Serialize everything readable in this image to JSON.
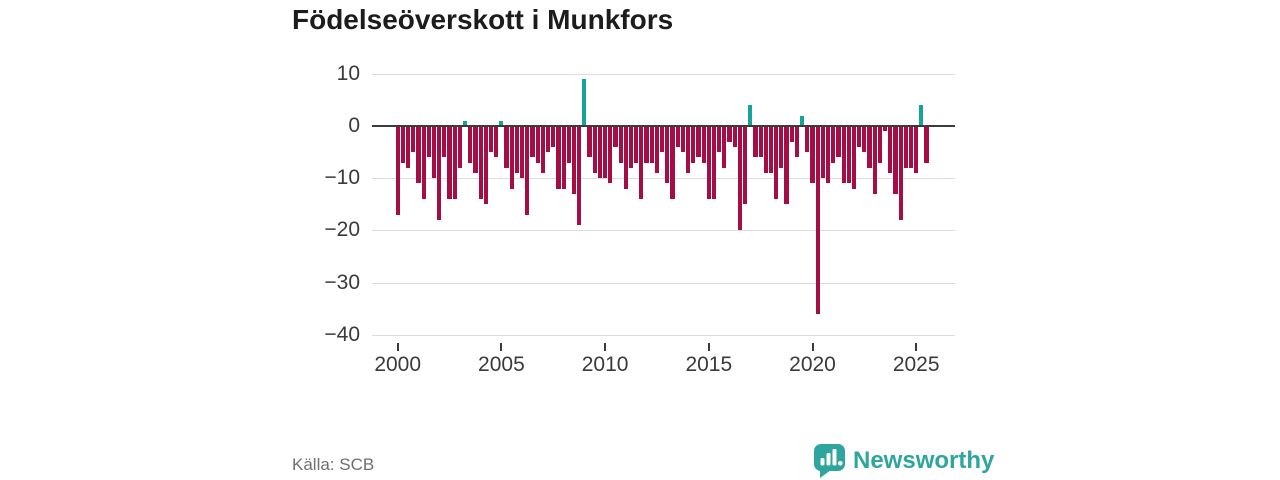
{
  "title": "Födelseöverskott i Munkfors",
  "source": "Källa: SCB",
  "brand": {
    "name": "Newsworthy"
  },
  "colors": {
    "negative_bar": "#a50d45",
    "positive_bar": "#17a39b",
    "zero_line": "#3b3b3b",
    "gridline": "#dcdcdc",
    "axis_text": "#3a3a3a",
    "title_text": "#1c1c1c",
    "source_text": "#6f6f6f",
    "brand_teal": "#2ea59d"
  },
  "chart_data": {
    "type": "bar",
    "title": "Födelseöverskott i Munkfors",
    "xlabel": "",
    "ylabel": "",
    "ylim": [
      -40,
      10
    ],
    "grid": true,
    "legend": "none",
    "frequency": "quarterly",
    "start_year": 2000,
    "start_quarter": 1,
    "end_year": 2025,
    "end_quarter": 3,
    "y_ticks": [
      {
        "label": "10",
        "value": 10
      },
      {
        "label": "0",
        "value": 0
      },
      {
        "label": "−10",
        "value": -10
      },
      {
        "label": "−20",
        "value": -20
      },
      {
        "label": "−30",
        "value": -30
      },
      {
        "label": "−40",
        "value": -40
      }
    ],
    "x_ticks": [
      {
        "label": "2000",
        "year": 2000
      },
      {
        "label": "2005",
        "year": 2005
      },
      {
        "label": "2010",
        "year": 2010
      },
      {
        "label": "2015",
        "year": 2015
      },
      {
        "label": "2020",
        "year": 2020
      },
      {
        "label": "2025",
        "year": 2025
      }
    ],
    "series": [
      {
        "name": "Födelseöverskott",
        "values": [
          -17,
          -7,
          -8,
          -5,
          -11,
          -14,
          -6,
          -10,
          -18,
          -6,
          -14,
          -14,
          -8,
          1,
          -7,
          -9,
          -14,
          -15,
          -5,
          -6,
          1,
          -8,
          -12,
          -9,
          -10,
          -17,
          -6,
          -7,
          -9,
          -5,
          -4,
          -12,
          -12,
          -7,
          -13,
          -19,
          9,
          -6,
          -9,
          -10,
          -10,
          -11,
          -4,
          -7,
          -12,
          -8,
          -7,
          -14,
          -7,
          -7,
          -9,
          -5,
          -11,
          -14,
          -4,
          -5,
          -9,
          -7,
          -6,
          -7,
          -14,
          -14,
          -5,
          -8,
          -3,
          -4,
          -20,
          -15,
          4,
          -6,
          -6,
          -9,
          -9,
          -14,
          -8,
          -15,
          -3,
          -6,
          2,
          -5,
          -11,
          -36,
          -10,
          -11,
          -7,
          -6,
          -11,
          -11,
          -12,
          -4,
          -5,
          -8,
          -13,
          -7,
          -1,
          -9,
          -13,
          -18,
          -8,
          -8,
          -9,
          4,
          -7
        ]
      }
    ]
  }
}
